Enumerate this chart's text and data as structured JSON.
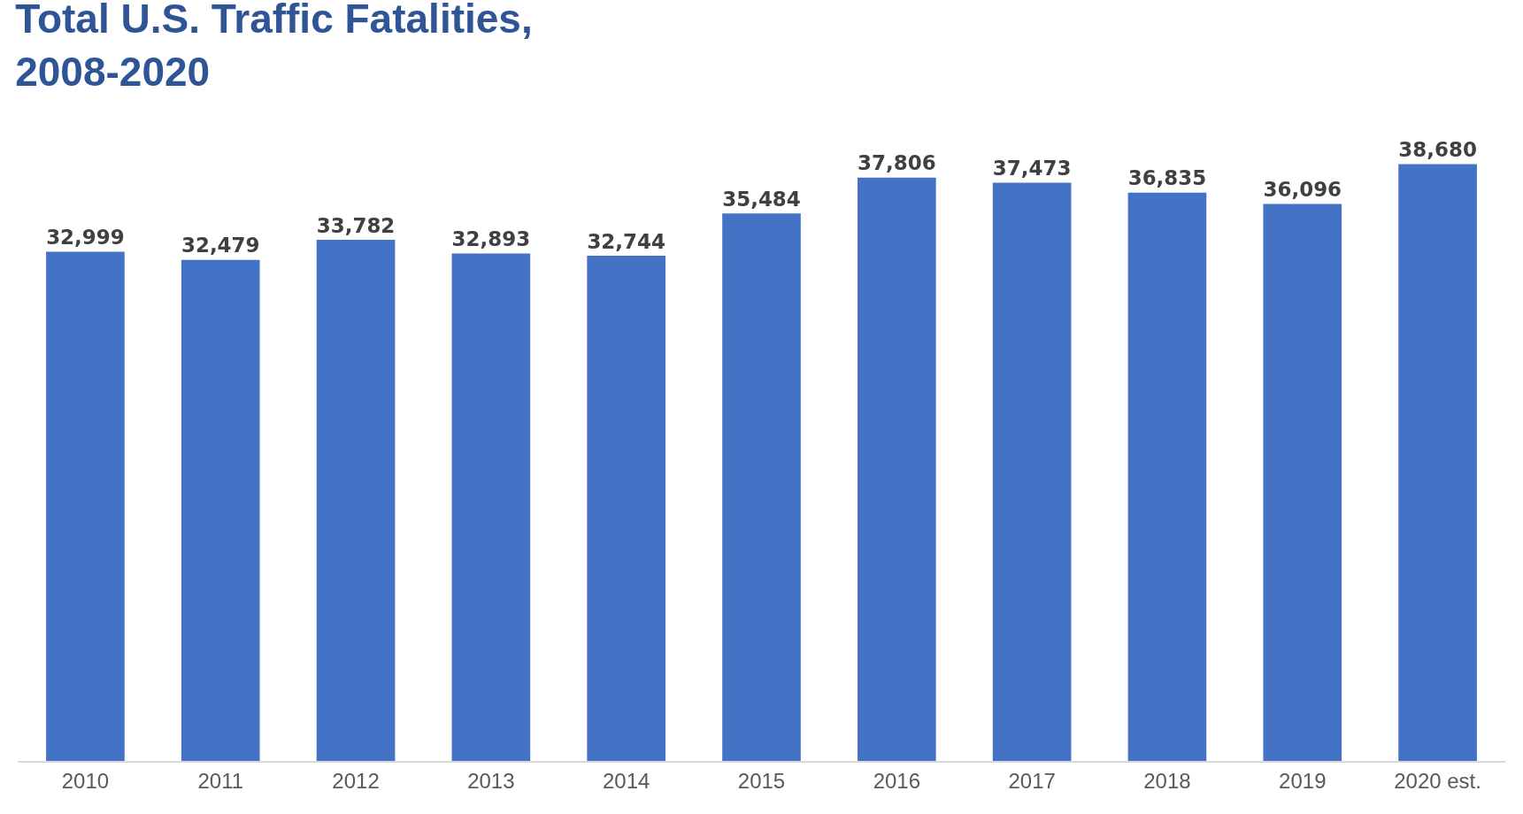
{
  "chart_data": {
    "type": "bar",
    "title": "Total U.S. Traffic Fatalities,\n2008-2020",
    "categories": [
      "2010",
      "2011",
      "2012",
      "2013",
      "2014",
      "2015",
      "2016",
      "2017",
      "2018",
      "2019",
      "2020 est."
    ],
    "values": [
      32999,
      32479,
      33782,
      32893,
      32744,
      35484,
      37806,
      37473,
      36835,
      36096,
      38680
    ],
    "value_labels": [
      "32,999",
      "32,479",
      "33,782",
      "32,893",
      "32,744",
      "35,484",
      "37,806",
      "37,473",
      "36,835",
      "36,096",
      "38,680"
    ],
    "color": "#4472c4",
    "tick_labels": "x"
  }
}
